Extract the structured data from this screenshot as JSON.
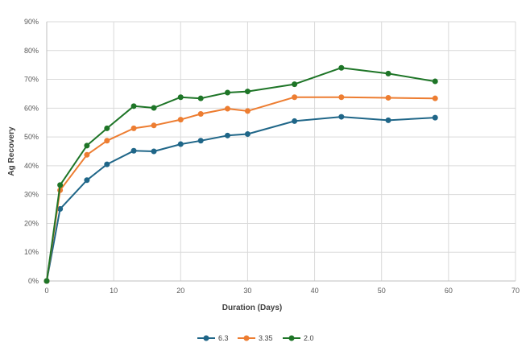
{
  "chart_data": {
    "type": "line",
    "title": "",
    "xlabel": "Duration (Days)",
    "ylabel": "Ag Recovery",
    "xlim": [
      0,
      70
    ],
    "ylim": [
      0,
      90
    ],
    "x_ticks": [
      0,
      10,
      20,
      30,
      40,
      50,
      60,
      70
    ],
    "y_ticks": [
      0,
      10,
      20,
      30,
      40,
      50,
      60,
      70,
      80,
      90
    ],
    "y_tick_suffix": "%",
    "grid": true,
    "legend_position": "bottom",
    "series": [
      {
        "name": "6.3",
        "color": "#1f6688",
        "x": [
          0,
          2,
          6,
          9,
          13,
          16,
          20,
          23,
          27,
          30,
          37,
          44,
          51,
          58
        ],
        "y": [
          0,
          25,
          35,
          40.5,
          45.2,
          45,
          47.5,
          48.7,
          50.5,
          51,
          55.5,
          57,
          55.8,
          56.7
        ]
      },
      {
        "name": "3.35",
        "color": "#ed7d31",
        "x": [
          0,
          2,
          6,
          9,
          13,
          16,
          20,
          23,
          27,
          30,
          37,
          44,
          51,
          58
        ],
        "y": [
          0,
          31.5,
          43.8,
          48.7,
          53,
          54,
          56,
          58,
          59.8,
          59,
          63.8,
          63.8,
          63.6,
          63.4
        ]
      },
      {
        "name": "2.0",
        "color": "#1e7527",
        "x": [
          0,
          2,
          6,
          9,
          13,
          16,
          20,
          23,
          27,
          30,
          37,
          44,
          51,
          58
        ],
        "y": [
          0,
          33.3,
          47,
          53,
          60.7,
          60.1,
          63.8,
          63.4,
          65.4,
          65.8,
          68.3,
          74,
          72,
          69.3
        ]
      }
    ]
  }
}
